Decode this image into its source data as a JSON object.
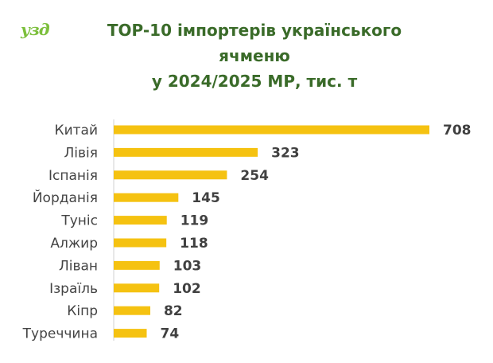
{
  "logo": {
    "text": "узд",
    "color": "#7cbf3c"
  },
  "chart_data": {
    "type": "bar",
    "orientation": "horizontal",
    "title_lines": [
      "TOP-10 імпортерів українського",
      "ячменю",
      "у 2024/2025 МР, тис. т"
    ],
    "categories": [
      "Китай",
      "Лівія",
      "Іспанія",
      "Йорданія",
      "Туніс",
      "Алжир",
      "Ліван",
      "Ізраїль",
      "Кіпр",
      "Туреччина"
    ],
    "values": [
      708,
      323,
      254,
      145,
      119,
      118,
      103,
      102,
      82,
      74
    ],
    "xlim": [
      0,
      708
    ],
    "grid": false,
    "bar_color": "#f5c211",
    "title_color": "#3a6b29"
  }
}
